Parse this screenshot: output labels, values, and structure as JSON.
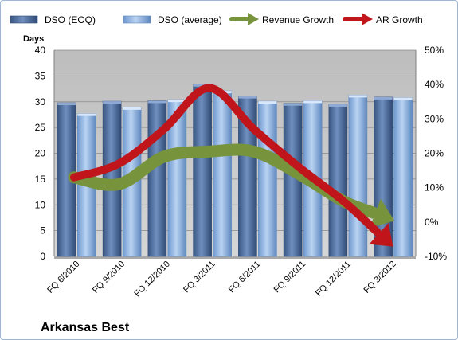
{
  "chart_data": {
    "type": "bar",
    "title": "Arkansas Best",
    "ylabel_left": "Days",
    "ylim_left": [
      0,
      40
    ],
    "yticks_left": [
      "0",
      "5",
      "10",
      "15",
      "20",
      "25",
      "30",
      "35",
      "40"
    ],
    "ylim_right": [
      -10,
      50
    ],
    "yticks_right": [
      "-10%",
      "0%",
      "10%",
      "20%",
      "30%",
      "40%",
      "50%"
    ],
    "categories": [
      "FQ 6/2010",
      "FQ 9/2010",
      "FQ 12/2010",
      "FQ 3/2011",
      "FQ 6/2011",
      "FQ 9/2011",
      "FQ 12/2011",
      "FQ 3/2012"
    ],
    "series": [
      {
        "name": "DSO (EOQ)",
        "type": "bar",
        "axis": "left",
        "values": [
          29.8,
          30.1,
          30.2,
          33.4,
          31.1,
          29.7,
          29.5,
          30.9
        ]
      },
      {
        "name": "DSO (average)",
        "type": "bar",
        "axis": "left",
        "values": [
          27.7,
          28.9,
          30.4,
          32.1,
          30.1,
          30.2,
          31.3,
          30.8
        ]
      },
      {
        "name": "Revenue Growth",
        "type": "line",
        "axis": "right",
        "values": [
          13,
          11,
          19,
          20.5,
          20.5,
          14,
          6,
          1
        ]
      },
      {
        "name": "AR Growth",
        "type": "line",
        "axis": "right",
        "values": [
          13,
          17,
          27,
          39,
          27,
          16,
          6,
          -6
        ]
      }
    ],
    "grid": true,
    "legend_position": "top",
    "colors": {
      "eoq": "#4f6fa0",
      "average": "#8fb4e3",
      "revenue_growth": "#77933c",
      "ar_growth": "#c0151b",
      "plot_background": "#c0c0c0",
      "frame_border": "#9fb7d3"
    }
  }
}
